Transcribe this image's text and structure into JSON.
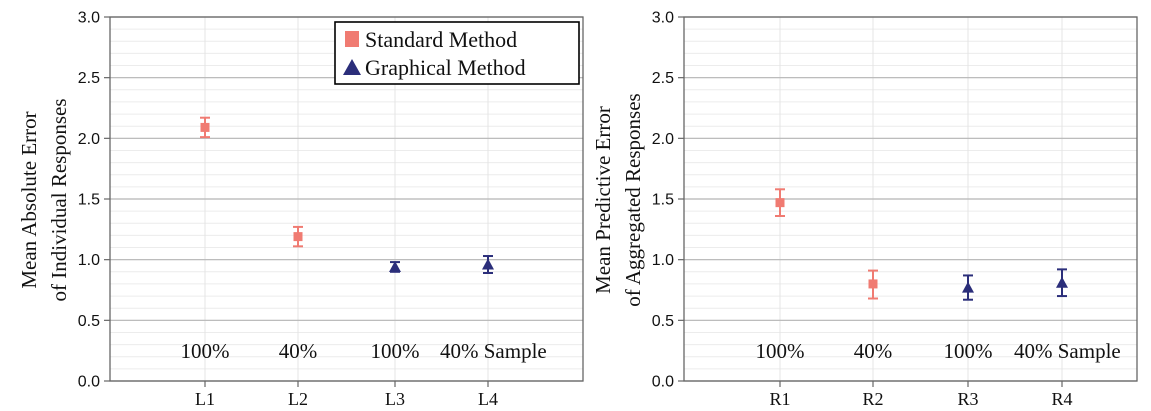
{
  "chart_data": [
    {
      "type": "scatter",
      "ylabel_lines": [
        "Mean Absolute Error",
        "of Individual Responses"
      ],
      "categories": [
        "L1",
        "L2",
        "L3",
        "L4"
      ],
      "condition_labels": [
        "100%",
        "40%",
        "100%",
        "40% Sample"
      ],
      "yticks": [
        "0.0",
        "0.5",
        "1.0",
        "1.5",
        "2.0",
        "2.5",
        "3.0"
      ],
      "ylim": [
        0,
        3
      ],
      "grid": true,
      "legend": {
        "placement": "top-right",
        "entries": [
          {
            "label": "Standard Method",
            "marker": "square",
            "color": "#f07b72"
          },
          {
            "label": "Graphical Method",
            "marker": "triangle",
            "color": "#2b2e7a"
          }
        ]
      },
      "points": [
        {
          "category": "L1",
          "method": 0,
          "y": 2.09,
          "err_low": 2.01,
          "err_high": 2.17
        },
        {
          "category": "L2",
          "method": 0,
          "y": 1.19,
          "err_low": 1.11,
          "err_high": 1.27
        },
        {
          "category": "L3",
          "method": 1,
          "y": 0.94,
          "err_low": 0.9,
          "err_high": 0.98
        },
        {
          "category": "L4",
          "method": 1,
          "y": 0.96,
          "err_low": 0.89,
          "err_high": 1.03
        }
      ]
    },
    {
      "type": "scatter",
      "ylabel_lines": [
        "Mean Predictive Error",
        "of Aggregated Responses"
      ],
      "categories": [
        "R1",
        "R2",
        "R3",
        "R4"
      ],
      "condition_labels": [
        "100%",
        "40%",
        "100%",
        "40% Sample"
      ],
      "yticks": [
        "0.0",
        "0.5",
        "1.0",
        "1.5",
        "2.0",
        "2.5",
        "3.0"
      ],
      "ylim": [
        0,
        3
      ],
      "grid": true,
      "points": [
        {
          "category": "R1",
          "method": 0,
          "y": 1.47,
          "err_low": 1.36,
          "err_high": 1.58
        },
        {
          "category": "R2",
          "method": 0,
          "y": 0.8,
          "err_low": 0.68,
          "err_high": 0.91
        },
        {
          "category": "R3",
          "method": 1,
          "y": 0.77,
          "err_low": 0.67,
          "err_high": 0.87
        },
        {
          "category": "R4",
          "method": 1,
          "y": 0.81,
          "err_low": 0.7,
          "err_high": 0.92
        }
      ]
    }
  ],
  "colors": {
    "standard": "#f07b72",
    "graphical": "#2b2e7a",
    "grid": "#b5b5b5",
    "axis": "#666666"
  }
}
